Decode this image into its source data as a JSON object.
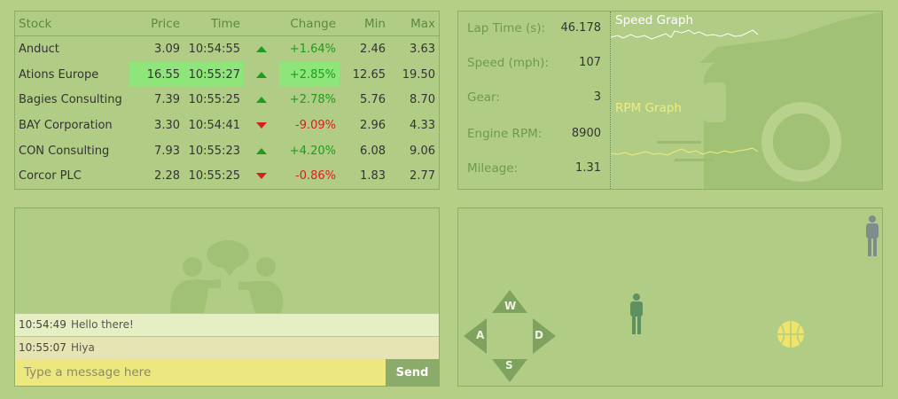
{
  "stocks": {
    "headers": {
      "stock": "Stock",
      "price": "Price",
      "time": "Time",
      "change": "Change",
      "min": "Min",
      "max": "Max"
    },
    "rows": [
      {
        "name": "Anduct",
        "price": "3.09",
        "time": "10:54:55",
        "dir": "up",
        "change": "+1.64%",
        "min": "2.46",
        "max": "3.63",
        "highlight": false
      },
      {
        "name": "Ations Europe",
        "price": "16.55",
        "time": "10:55:27",
        "dir": "up",
        "change": "+2.85%",
        "min": "12.65",
        "max": "19.50",
        "highlight": true
      },
      {
        "name": "Bagies Consulting",
        "price": "7.39",
        "time": "10:55:25",
        "dir": "up",
        "change": "+2.78%",
        "min": "5.76",
        "max": "8.70",
        "highlight": false
      },
      {
        "name": "BAY Corporation",
        "price": "3.30",
        "time": "10:54:41",
        "dir": "down",
        "change": "-9.09%",
        "min": "2.96",
        "max": "4.33",
        "highlight": false
      },
      {
        "name": "CON Consulting",
        "price": "7.93",
        "time": "10:55:23",
        "dir": "up",
        "change": "+4.20%",
        "min": "6.08",
        "max": "9.06",
        "highlight": false
      },
      {
        "name": "Corcor PLC",
        "price": "2.28",
        "time": "10:55:25",
        "dir": "down",
        "change": "-0.86%",
        "min": "1.83",
        "max": "2.77",
        "highlight": false
      }
    ]
  },
  "telemetry": {
    "rows": [
      {
        "label": "Lap Time (s):",
        "value": "46.178"
      },
      {
        "label": "Speed (mph):",
        "value": "107"
      },
      {
        "label": "Gear:",
        "value": "3"
      },
      {
        "label": "Engine RPM:",
        "value": "8900"
      },
      {
        "label": "Mileage:",
        "value": "1.31"
      }
    ],
    "speed_graph_title": "Speed Graph",
    "rpm_graph_title": "RPM Graph",
    "speed_color": "#ffffff",
    "rpm_color": "#f2ec7a"
  },
  "chat": {
    "messages": [
      {
        "time": "10:54:49",
        "text": "Hello there!"
      },
      {
        "time": "10:55:07",
        "text": "Hiya"
      }
    ],
    "input_placeholder": "Type a message here",
    "send_label": "Send"
  },
  "game": {
    "keys": {
      "up": "W",
      "left": "A",
      "right": "D",
      "down": "S"
    },
    "icons": [
      "person-icon",
      "basketball-icon",
      "arrow-key-icon"
    ]
  },
  "colors": {
    "background": "#b5cf87",
    "panel_border": "#8eae63",
    "positive": "#1f9b1f",
    "negative": "#d62020",
    "highlight": "#8ee67a",
    "input_bg": "#ece77e",
    "send_bg": "#8aab6a"
  }
}
